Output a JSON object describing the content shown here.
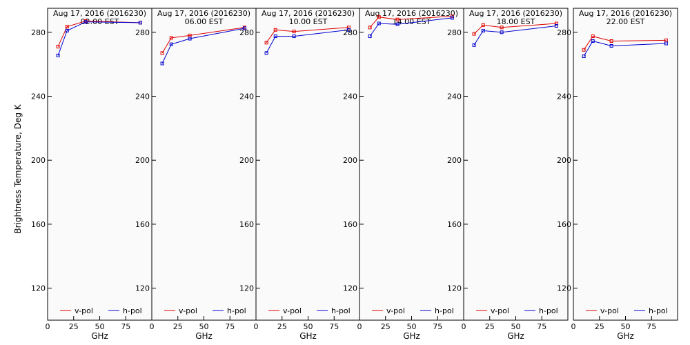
{
  "figure": {
    "ylabel": "Brightness Temperature, Deg K",
    "xlabel": "GHz",
    "background": "#fafafa",
    "v_color": "#e00000",
    "h_color": "#0000d0"
  },
  "chart_data": [
    {
      "type": "line",
      "title": "Aug 17, 2016 (2016230)",
      "subtitle": "02.00 EST",
      "xlabel": "GHz",
      "xlim": [
        0,
        100
      ],
      "ylim": [
        100,
        295
      ],
      "xticks": [
        "0",
        "25",
        "50",
        "75"
      ],
      "yticks": [
        "120",
        "160",
        "200",
        "240",
        "280"
      ],
      "legend": "bottom",
      "series": [
        {
          "name": "v-pol",
          "x": [
            10,
            18.7,
            36.5,
            89
          ],
          "y": [
            271,
            283.5,
            287,
            286
          ]
        },
        {
          "name": "h-pol",
          "x": [
            10,
            18.7,
            36.5,
            89
          ],
          "y": [
            265.5,
            281,
            286.5,
            286
          ]
        }
      ]
    },
    {
      "type": "line",
      "title": "Aug 17, 2016 (2016230)",
      "subtitle": "06.00 EST",
      "xlabel": "GHz",
      "xlim": [
        0,
        100
      ],
      "ylim": [
        100,
        295
      ],
      "xticks": [
        "0",
        "25",
        "50",
        "75"
      ],
      "yticks": [
        "120",
        "160",
        "200",
        "240",
        "280"
      ],
      "legend": "bottom",
      "series": [
        {
          "name": "v-pol",
          "x": [
            10,
            18.7,
            36.5,
            89
          ],
          "y": [
            267,
            276.5,
            278,
            283
          ]
        },
        {
          "name": "h-pol",
          "x": [
            10,
            18.7,
            36.5,
            89
          ],
          "y": [
            260.5,
            272.5,
            276,
            282.5
          ]
        }
      ]
    },
    {
      "type": "line",
      "title": "Aug 17, 2016 (2016230)",
      "subtitle": "10.00 EST",
      "xlabel": "GHz",
      "xlim": [
        0,
        100
      ],
      "ylim": [
        100,
        295
      ],
      "xticks": [
        "0",
        "25",
        "50",
        "75"
      ],
      "yticks": [
        "120",
        "160",
        "200",
        "240",
        "280"
      ],
      "legend": "bottom",
      "series": [
        {
          "name": "v-pol",
          "x": [
            10,
            18.7,
            36.5,
            89
          ],
          "y": [
            273.5,
            281.5,
            280.5,
            283
          ]
        },
        {
          "name": "h-pol",
          "x": [
            10,
            18.7,
            36.5,
            89
          ],
          "y": [
            267,
            277.5,
            277.5,
            281.5
          ]
        }
      ]
    },
    {
      "type": "line",
      "title": "Aug 17, 2016 (2016230)",
      "subtitle": "14.00 EST",
      "xlabel": "GHz",
      "xlim": [
        0,
        100
      ],
      "ylim": [
        100,
        295
      ],
      "xticks": [
        "0",
        "25",
        "50",
        "75"
      ],
      "yticks": [
        "120",
        "160",
        "200",
        "240",
        "280"
      ],
      "legend": "bottom",
      "series": [
        {
          "name": "v-pol",
          "x": [
            10,
            18.7,
            36.5,
            89
          ],
          "y": [
            283,
            289.5,
            288,
            290
          ]
        },
        {
          "name": "h-pol",
          "x": [
            10,
            18.7,
            36.5,
            89
          ],
          "y": [
            277.5,
            285.5,
            285,
            289
          ]
        }
      ]
    },
    {
      "type": "line",
      "title": "Aug 17, 2016 (2016230)",
      "subtitle": "18.00 EST",
      "xlabel": "GHz",
      "xlim": [
        0,
        100
      ],
      "ylim": [
        100,
        295
      ],
      "xticks": [
        "0",
        "25",
        "50",
        "75"
      ],
      "yticks": [
        "120",
        "160",
        "200",
        "240",
        "280"
      ],
      "legend": "bottom",
      "series": [
        {
          "name": "v-pol",
          "x": [
            10,
            18.7,
            36.5,
            89
          ],
          "y": [
            279,
            284.5,
            283,
            285.5
          ]
        },
        {
          "name": "h-pol",
          "x": [
            10,
            18.7,
            36.5,
            89
          ],
          "y": [
            272,
            281,
            280,
            284
          ]
        }
      ]
    },
    {
      "type": "line",
      "title": "Aug 17, 2016 (2016230)",
      "subtitle": "22.00 EST",
      "xlabel": "GHz",
      "xlim": [
        0,
        100
      ],
      "ylim": [
        100,
        295
      ],
      "xticks": [
        "0",
        "25",
        "50",
        "75"
      ],
      "yticks": [
        "120",
        "160",
        "200",
        "240",
        "280"
      ],
      "legend": "bottom",
      "series": [
        {
          "name": "v-pol",
          "x": [
            10,
            18.7,
            36.5,
            89
          ],
          "y": [
            269,
            277.5,
            274.5,
            275
          ]
        },
        {
          "name": "h-pol",
          "x": [
            10,
            18.7,
            36.5,
            89
          ],
          "y": [
            265,
            274.5,
            271.5,
            273
          ]
        }
      ]
    }
  ]
}
